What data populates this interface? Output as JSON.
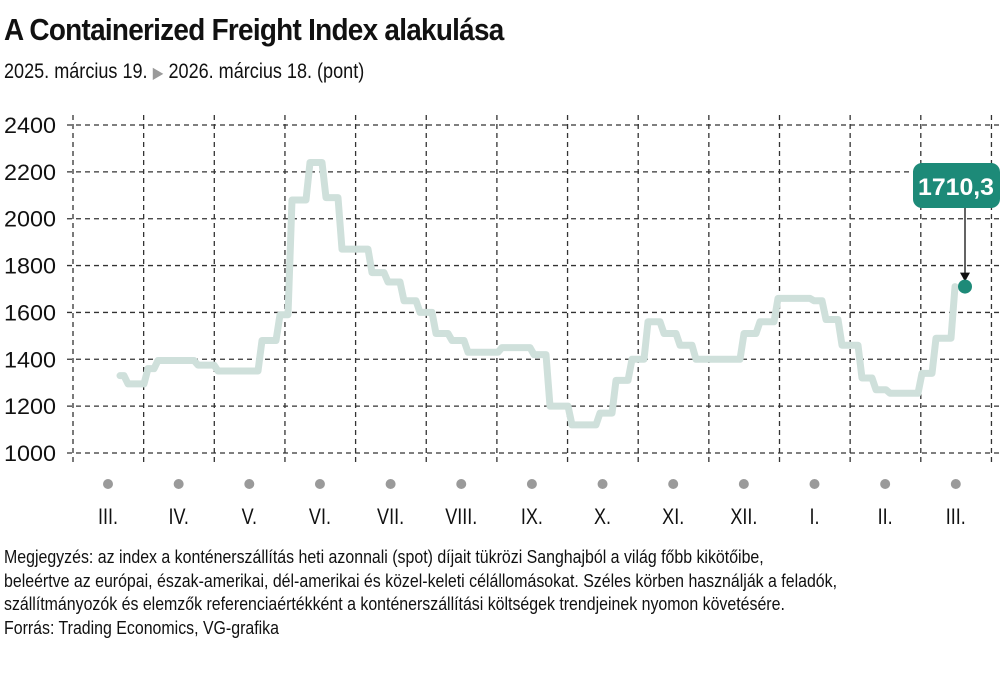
{
  "header": {
    "title": "A Containerized Freight Index alakulása",
    "subtitle_start": "2025. március 19.",
    "subtitle_arrow": "▶",
    "subtitle_end": "2026. március 18. (pont)"
  },
  "callout": {
    "value_label": "1710,3",
    "color": "#1d8a78"
  },
  "colors": {
    "line": "#cfe0db",
    "marker": "#1d8a78",
    "grid": "#333333",
    "month_dot": "#9a9a9a"
  },
  "footer": {
    "note_lines": [
      "Megjegyzés: az index a konténerszállítás heti azonnali (spot) díjait tükrözi Sanghajból a világ főbb kikötőibe,",
      "beleértve az európai, észak-amerikai, dél-amerikai és közel-keleti célállomásokat. Széles körben használják a feladók,",
      "szállítmányozók és elemzők referenciaértékként a konténerszállítási költségek trendjeinek nyomon követésére."
    ],
    "source": "Forrás: Trading Economics, VG-grafika"
  },
  "chart_data": {
    "type": "line",
    "title": "A Containerized Freight Index alakulása",
    "subtitle": "2025. március 19. ▶ 2026. március 18. (pont)",
    "xlabel": "",
    "ylabel": "pont",
    "ylim": [
      1000,
      2400
    ],
    "yticks": [
      2400,
      2200,
      2000,
      1800,
      1600,
      1400,
      1200,
      1000
    ],
    "grid": true,
    "categories": [
      "III.",
      "IV.",
      "V.",
      "VI.",
      "VII.",
      "VIII.",
      "IX.",
      "X.",
      "XI.",
      "XII.",
      "I.",
      "II.",
      "III."
    ],
    "series": [
      {
        "name": "Containerized Freight Index (heti)",
        "step": true,
        "points": [
          {
            "x": 120,
            "v": 1330
          },
          {
            "x": 128,
            "v": 1295
          },
          {
            "x": 148,
            "v": 1360
          },
          {
            "x": 158,
            "v": 1395
          },
          {
            "x": 198,
            "v": 1375
          },
          {
            "x": 218,
            "v": 1350
          },
          {
            "x": 262,
            "v": 1480
          },
          {
            "x": 280,
            "v": 1590
          },
          {
            "x": 292,
            "v": 2080
          },
          {
            "x": 310,
            "v": 2240
          },
          {
            "x": 326,
            "v": 2090
          },
          {
            "x": 342,
            "v": 1870
          },
          {
            "x": 372,
            "v": 1770
          },
          {
            "x": 388,
            "v": 1730
          },
          {
            "x": 404,
            "v": 1650
          },
          {
            "x": 420,
            "v": 1600
          },
          {
            "x": 436,
            "v": 1510
          },
          {
            "x": 452,
            "v": 1480
          },
          {
            "x": 468,
            "v": 1430
          },
          {
            "x": 502,
            "v": 1450
          },
          {
            "x": 534,
            "v": 1420
          },
          {
            "x": 550,
            "v": 1200
          },
          {
            "x": 572,
            "v": 1120
          },
          {
            "x": 600,
            "v": 1170
          },
          {
            "x": 616,
            "v": 1310
          },
          {
            "x": 632,
            "v": 1400
          },
          {
            "x": 648,
            "v": 1560
          },
          {
            "x": 664,
            "v": 1510
          },
          {
            "x": 680,
            "v": 1460
          },
          {
            "x": 696,
            "v": 1400
          },
          {
            "x": 744,
            "v": 1510
          },
          {
            "x": 760,
            "v": 1560
          },
          {
            "x": 778,
            "v": 1660
          },
          {
            "x": 814,
            "v": 1650
          },
          {
            "x": 826,
            "v": 1570
          },
          {
            "x": 842,
            "v": 1460
          },
          {
            "x": 862,
            "v": 1320
          },
          {
            "x": 876,
            "v": 1270
          },
          {
            "x": 890,
            "v": 1255
          },
          {
            "x": 922,
            "v": 1340
          },
          {
            "x": 936,
            "v": 1490
          },
          {
            "x": 955,
            "v": 1710.3
          }
        ]
      }
    ],
    "annotations": [
      {
        "text": "1710,3",
        "target": "last point"
      }
    ]
  }
}
